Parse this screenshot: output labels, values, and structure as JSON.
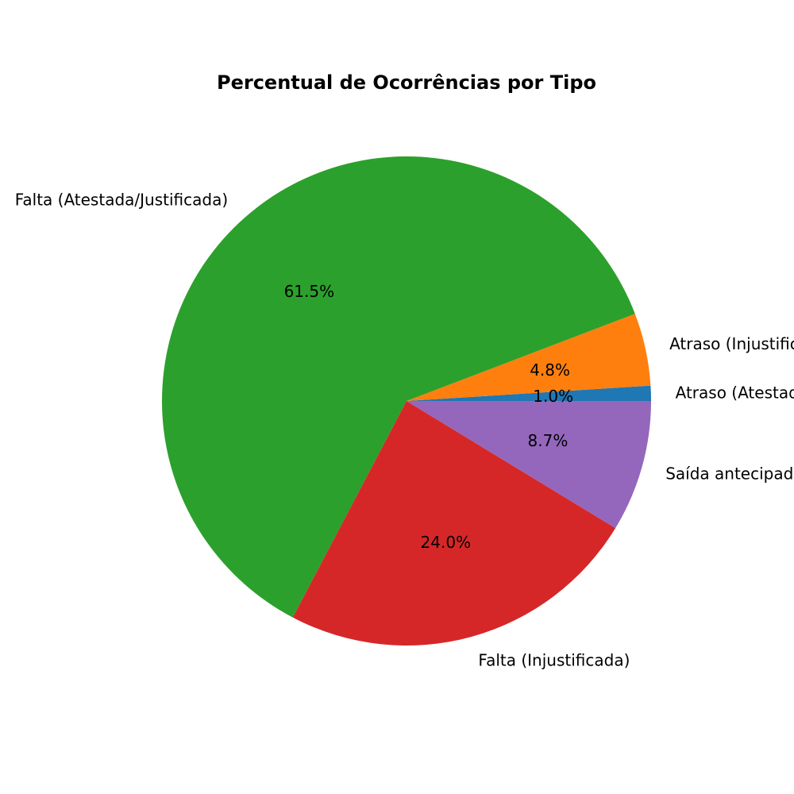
{
  "chart_data": {
    "type": "pie",
    "title": "Percentual de Ocorrências por Tipo",
    "slices": [
      {
        "label": "Atraso (Atestado/Justificado)",
        "value": 1.0,
        "pct_label": "1.0%",
        "color": "#1f77b4"
      },
      {
        "label": "Atraso (Injustificado)",
        "value": 4.8,
        "pct_label": "4.8%",
        "color": "#ff7f0e"
      },
      {
        "label": "Falta (Atestada/Justificada)",
        "value": 61.5,
        "pct_label": "61.5%",
        "color": "#2ca02c"
      },
      {
        "label": "Falta (Injustificada)",
        "value": 24.0,
        "pct_label": "24.0%",
        "color": "#d62728"
      },
      {
        "label": "Saída antecipada",
        "value": 8.7,
        "pct_label": "8.7%",
        "color": "#9467bd"
      }
    ],
    "start_angle_deg": 0,
    "direction": "counterclockwise",
    "legend": "none"
  }
}
